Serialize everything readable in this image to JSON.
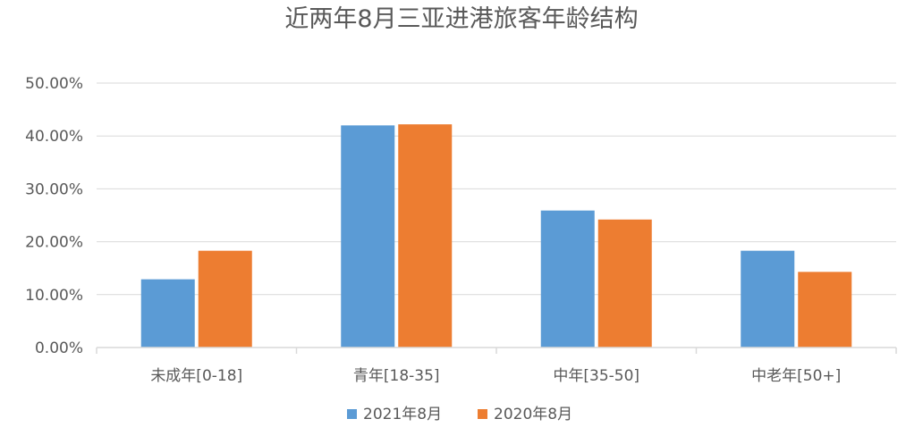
{
  "chart_data": {
    "type": "bar",
    "title": "近两年8月三亚进港旅客年龄结构",
    "categories": [
      "未成年[0-18]",
      "青年[18-35]",
      "中年[35-50]",
      "中老年[50+]"
    ],
    "series": [
      {
        "name": "2021年8月",
        "values": [
          12.9,
          42.0,
          25.9,
          18.3
        ],
        "color": "#5b9bd5"
      },
      {
        "name": "2020年8月",
        "values": [
          18.3,
          42.2,
          24.2,
          14.3
        ],
        "color": "#ed7d31"
      }
    ],
    "yticks": [
      "0.00%",
      "10.00%",
      "20.00%",
      "30.00%",
      "40.00%",
      "50.00%"
    ],
    "ylim": [
      0,
      50
    ],
    "grid": true,
    "legend_position": "bottom"
  }
}
